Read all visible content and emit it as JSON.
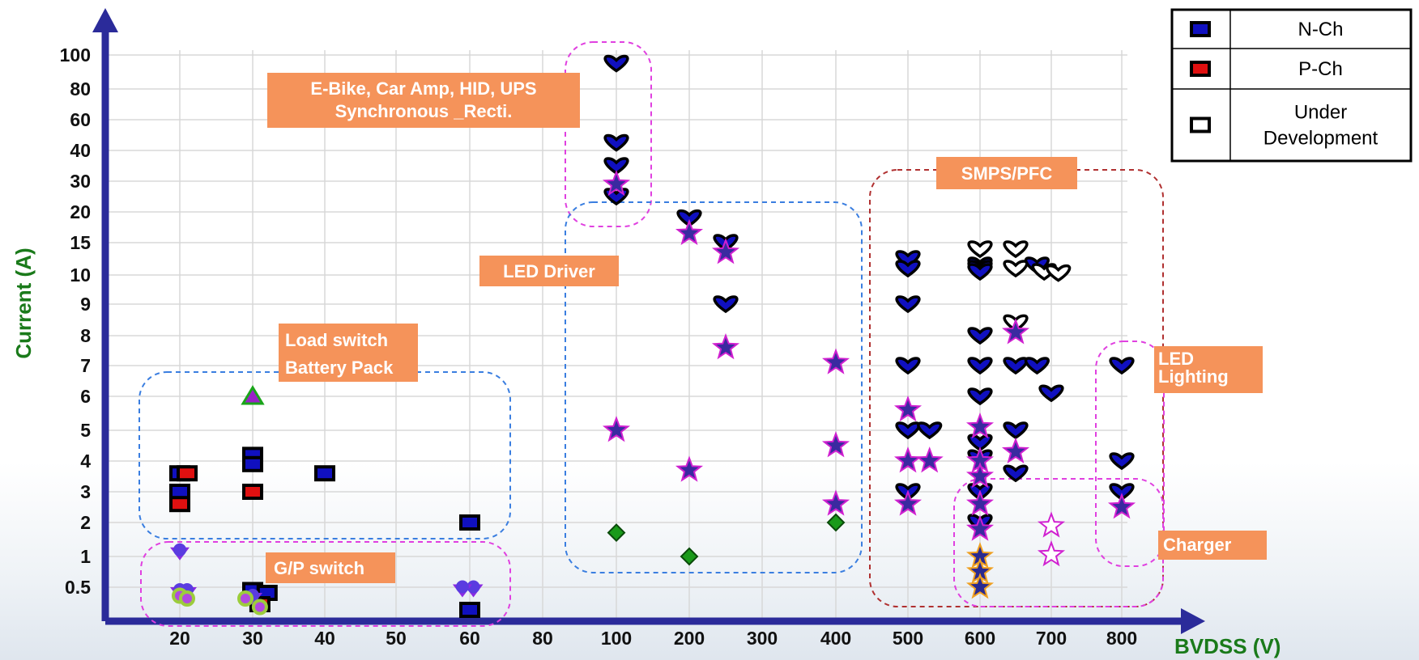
{
  "chart_data": {
    "type": "scatter",
    "xlabel": "BVDSS (V)",
    "ylabel": "Current (A)",
    "x_ticks": [
      "20",
      "30",
      "40",
      "50",
      "60",
      "80",
      "100",
      "200",
      "300",
      "400",
      "500",
      "600",
      "700",
      "800"
    ],
    "y_ticks": [
      "0.5",
      "1",
      "2",
      "3",
      "4",
      "5",
      "6",
      "7",
      "8",
      "9",
      "10",
      "15",
      "20",
      "30",
      "40",
      "60",
      "80",
      "100"
    ],
    "legend": [
      {
        "label": "N-Ch",
        "color": "#1010c0"
      },
      {
        "label": "P-Ch",
        "color": "#e01010"
      },
      {
        "label": "Under\nDevelopment",
        "color": "#ffffff"
      }
    ],
    "regions": [
      {
        "label": "E-Bike, Car Amp, HID, UPS\nSynchronous _Recti."
      },
      {
        "label": "LED Driver"
      },
      {
        "label": "Load switch\nBattery Pack"
      },
      {
        "label": "G/P switch"
      },
      {
        "label": "SMPS/PFC"
      },
      {
        "label": "LED\nLighting"
      },
      {
        "label": "Charger"
      }
    ],
    "series": [
      {
        "marker": "rect-nch",
        "points": [
          [
            20,
            3.6
          ],
          [
            20,
            3.0
          ],
          [
            30,
            4.2
          ],
          [
            30,
            3.9
          ],
          [
            40,
            3.6
          ],
          [
            60,
            2.0
          ],
          [
            30,
            0.45
          ],
          [
            60,
            0.1
          ],
          [
            32,
            0.4
          ]
        ]
      },
      {
        "marker": "rect-pch",
        "points": [
          [
            21,
            3.6
          ],
          [
            20,
            2.6
          ],
          [
            30,
            3.0
          ],
          [
            31,
            0.2
          ]
        ]
      },
      {
        "marker": "triangle-green",
        "points": [
          [
            30,
            6.0
          ]
        ]
      },
      {
        "marker": "purple-misc",
        "points": [
          [
            20,
            1.1
          ],
          [
            20,
            0.4
          ],
          [
            21,
            0.4
          ],
          [
            30,
            0.3
          ],
          [
            61,
            0.45
          ],
          [
            59,
            0.45
          ]
        ]
      },
      {
        "marker": "green-circle",
        "points": [
          [
            20,
            0.35
          ],
          [
            21,
            0.3
          ],
          [
            29,
            0.3
          ],
          [
            31,
            0.15
          ]
        ]
      },
      {
        "marker": "heart-blue",
        "points": [
          [
            100,
            95
          ],
          [
            100,
            45
          ],
          [
            100,
            35
          ],
          [
            100,
            25
          ],
          [
            200,
            19
          ],
          [
            250,
            15
          ],
          [
            250,
            9
          ],
          [
            500,
            12.5
          ],
          [
            500,
            11
          ],
          [
            500,
            9
          ],
          [
            500,
            7
          ],
          [
            500,
            5
          ],
          [
            530,
            5
          ],
          [
            500,
            3
          ],
          [
            600,
            11.5
          ],
          [
            600,
            11
          ],
          [
            600,
            10.5
          ],
          [
            600,
            8
          ],
          [
            600,
            7
          ],
          [
            600,
            6
          ],
          [
            600,
            4.6
          ],
          [
            600,
            4.1
          ],
          [
            600,
            3
          ],
          [
            600,
            2
          ],
          [
            650,
            7
          ],
          [
            650,
            5
          ],
          [
            650,
            3.6
          ],
          [
            680,
            11.5
          ],
          [
            680,
            7
          ],
          [
            700,
            6.1
          ],
          [
            800,
            7
          ],
          [
            800,
            4
          ],
          [
            800,
            3
          ]
        ]
      },
      {
        "marker": "heart-dev",
        "points": [
          [
            600,
            14
          ],
          [
            650,
            14
          ],
          [
            650,
            11
          ],
          [
            650,
            8.4
          ],
          [
            690,
            10.5
          ],
          [
            710,
            10.3
          ]
        ]
      },
      {
        "marker": "star-magenta",
        "points": [
          [
            100,
            29
          ],
          [
            100,
            5
          ],
          [
            200,
            16.5
          ],
          [
            200,
            3.7
          ],
          [
            250,
            13.5
          ],
          [
            250,
            7.6
          ],
          [
            400,
            7.1
          ],
          [
            400,
            4.5
          ],
          [
            400,
            2.6
          ],
          [
            500,
            5.6
          ],
          [
            500,
            4.0
          ],
          [
            500,
            2.6
          ],
          [
            530,
            4.0
          ],
          [
            600,
            5.1
          ],
          [
            600,
            4.0
          ],
          [
            600,
            3.5
          ],
          [
            600,
            2.6
          ],
          [
            600,
            1.8
          ],
          [
            650,
            8.1
          ],
          [
            650,
            4.3
          ],
          [
            800,
            2.5
          ]
        ]
      },
      {
        "marker": "star-dev",
        "points": [
          [
            700,
            1.9
          ],
          [
            700,
            1.05
          ]
        ]
      },
      {
        "marker": "star-orange",
        "points": [
          [
            600,
            1.0
          ],
          [
            600,
            0.75
          ],
          [
            600,
            0.5
          ]
        ]
      },
      {
        "marker": "diamond-green",
        "points": [
          [
            100,
            1.7
          ],
          [
            200,
            1.0
          ],
          [
            400,
            2.0
          ]
        ]
      }
    ]
  }
}
